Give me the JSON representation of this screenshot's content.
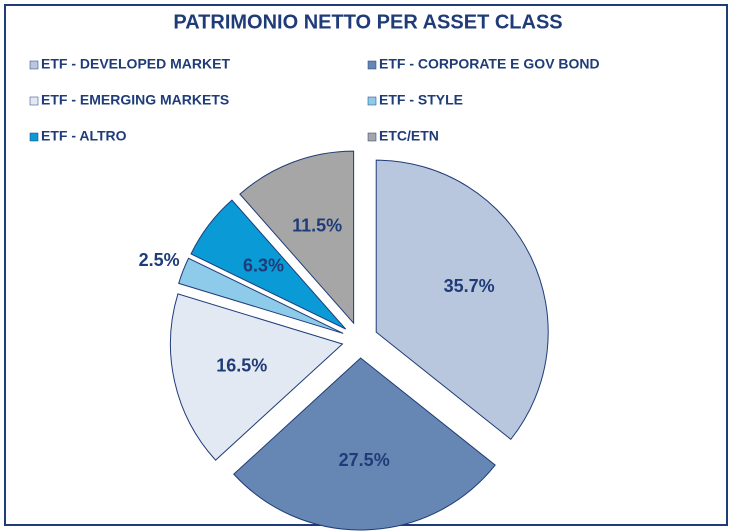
{
  "chart_data": {
    "type": "pie",
    "title": "PATRIMONIO NETTO PER ASSET CLASS",
    "categories": [
      "ETF - DEVELOPED MARKET",
      "ETF - CORPORATE E GOV BOND",
      "ETF - EMERGING MARKETS",
      "ETF - STYLE",
      "ETF - ALTRO",
      "ETC/ETN"
    ],
    "values": [
      35.7,
      27.5,
      16.5,
      2.5,
      6.3,
      11.5
    ],
    "value_labels": [
      "35.7%",
      "27.5%",
      "16.5%",
      "2.5%",
      "6.3%",
      "11.5%"
    ],
    "colors": [
      "#b9c7de",
      "#6687b3",
      "#e3e9f3",
      "#8ecbea",
      "#0a9ad6",
      "#a6a6a6"
    ],
    "legend_order": [
      0,
      1,
      2,
      3,
      4,
      5
    ]
  }
}
